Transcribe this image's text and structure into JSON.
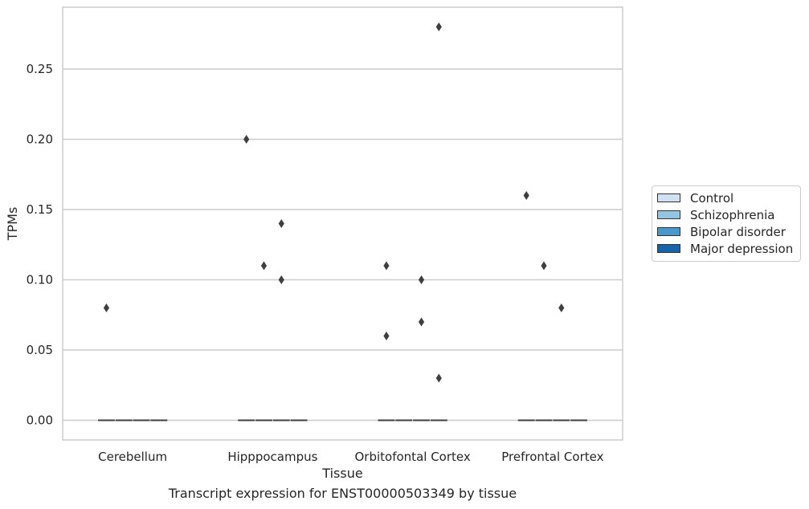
{
  "chart_data": {
    "type": "box",
    "caption": "Transcript expression for ENST00000503349 by tissue",
    "xlabel": "Tissue",
    "ylabel": "TPMs",
    "categories": [
      "Cerebellum",
      "Hipppocampus",
      "Orbitofontal Cortex",
      "Prefrontal Cortex"
    ],
    "ylim": [
      -0.014,
      0.294
    ],
    "yticks": [
      0.0,
      0.05,
      0.1,
      0.15,
      0.2,
      0.25
    ],
    "ytick_labels": [
      "0.00",
      "0.05",
      "0.10",
      "0.15",
      "0.20",
      "0.25"
    ],
    "grid": true,
    "legend_position": "right",
    "series": [
      {
        "name": "Control",
        "color": "#d0e1f2"
      },
      {
        "name": "Schizophrenia",
        "color": "#94c4df"
      },
      {
        "name": "Bipolar disorder",
        "color": "#4a98c9"
      },
      {
        "name": "Major depression",
        "color": "#1764ab"
      }
    ],
    "boxes": [
      {
        "category": "Cerebellum",
        "series": "Control",
        "median": 0.0,
        "q1": 0.0,
        "q3": 0.0
      },
      {
        "category": "Cerebellum",
        "series": "Schizophrenia",
        "median": 0.0,
        "q1": 0.0,
        "q3": 0.0
      },
      {
        "category": "Cerebellum",
        "series": "Bipolar disorder",
        "median": 0.0,
        "q1": 0.0,
        "q3": 0.0
      },
      {
        "category": "Cerebellum",
        "series": "Major depression",
        "median": 0.0,
        "q1": 0.0,
        "q3": 0.0
      },
      {
        "category": "Hipppocampus",
        "series": "Control",
        "median": 0.0,
        "q1": 0.0,
        "q3": 0.0
      },
      {
        "category": "Hipppocampus",
        "series": "Schizophrenia",
        "median": 0.0,
        "q1": 0.0,
        "q3": 0.0
      },
      {
        "category": "Hipppocampus",
        "series": "Bipolar disorder",
        "median": 0.0,
        "q1": 0.0,
        "q3": 0.0
      },
      {
        "category": "Hipppocampus",
        "series": "Major depression",
        "median": 0.0,
        "q1": 0.0,
        "q3": 0.0
      },
      {
        "category": "Orbitofontal Cortex",
        "series": "Control",
        "median": 0.0,
        "q1": 0.0,
        "q3": 0.0
      },
      {
        "category": "Orbitofontal Cortex",
        "series": "Schizophrenia",
        "median": 0.0,
        "q1": 0.0,
        "q3": 0.0
      },
      {
        "category": "Orbitofontal Cortex",
        "series": "Bipolar disorder",
        "median": 0.0,
        "q1": 0.0,
        "q3": 0.0
      },
      {
        "category": "Orbitofontal Cortex",
        "series": "Major depression",
        "median": 0.0,
        "q1": 0.0,
        "q3": 0.0
      },
      {
        "category": "Prefrontal Cortex",
        "series": "Control",
        "median": 0.0,
        "q1": 0.0,
        "q3": 0.0
      },
      {
        "category": "Prefrontal Cortex",
        "series": "Schizophrenia",
        "median": 0.0,
        "q1": 0.0,
        "q3": 0.0
      },
      {
        "category": "Prefrontal Cortex",
        "series": "Bipolar disorder",
        "median": 0.0,
        "q1": 0.0,
        "q3": 0.0
      },
      {
        "category": "Prefrontal Cortex",
        "series": "Major depression",
        "median": 0.0,
        "q1": 0.0,
        "q3": 0.0
      }
    ],
    "outliers": [
      {
        "category": "Cerebellum",
        "series": "Control",
        "values": [
          0.08
        ]
      },
      {
        "category": "Hipppocampus",
        "series": "Control",
        "values": [
          0.2
        ]
      },
      {
        "category": "Hipppocampus",
        "series": "Schizophrenia",
        "values": [
          0.11
        ]
      },
      {
        "category": "Hipppocampus",
        "series": "Bipolar disorder",
        "values": [
          0.14,
          0.1
        ]
      },
      {
        "category": "Orbitofontal Cortex",
        "series": "Control",
        "values": [
          0.11,
          0.06
        ]
      },
      {
        "category": "Orbitofontal Cortex",
        "series": "Bipolar disorder",
        "values": [
          0.1,
          0.07
        ]
      },
      {
        "category": "Orbitofontal Cortex",
        "series": "Major depression",
        "values": [
          0.28,
          0.03
        ]
      },
      {
        "category": "Prefrontal Cortex",
        "series": "Control",
        "values": [
          0.16
        ]
      },
      {
        "category": "Prefrontal Cortex",
        "series": "Schizophrenia",
        "values": [
          0.11
        ]
      },
      {
        "category": "Prefrontal Cortex",
        "series": "Bipolar disorder",
        "values": [
          0.08
        ]
      }
    ]
  }
}
